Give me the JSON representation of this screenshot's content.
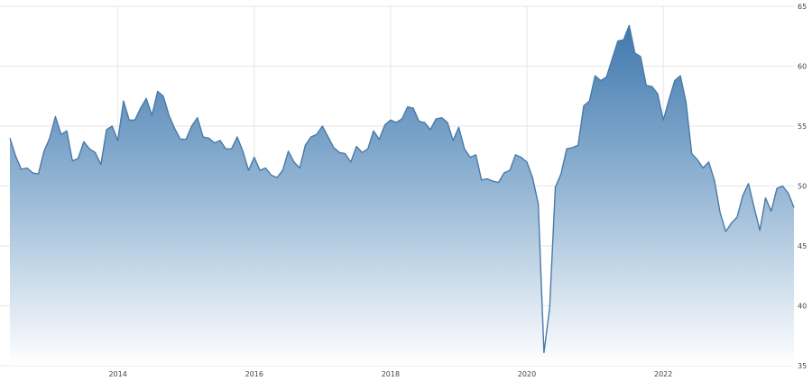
{
  "chart_data": {
    "type": "area",
    "title": "",
    "xlabel": "",
    "ylabel": "",
    "ylim": [
      35,
      65
    ],
    "y_ticks": [
      "35",
      "40",
      "45",
      "50",
      "55",
      "60",
      "65"
    ],
    "x_ticks": [
      "2014",
      "2016",
      "2018",
      "2020",
      "2022"
    ],
    "y_axis_side": "right",
    "grid": true,
    "colors": {
      "line": "#4a7aa8",
      "fill_top": "#3f78ad",
      "fill_bottom": "#ffffff",
      "grid": "#e6e6e6"
    },
    "x": [
      "2012-06",
      "2012-07",
      "2012-08",
      "2012-09",
      "2012-10",
      "2012-11",
      "2012-12",
      "2013-01",
      "2013-02",
      "2013-03",
      "2013-04",
      "2013-05",
      "2013-06",
      "2013-07",
      "2013-08",
      "2013-09",
      "2013-10",
      "2013-11",
      "2013-12",
      "2014-01",
      "2014-02",
      "2014-03",
      "2014-04",
      "2014-05",
      "2014-06",
      "2014-07",
      "2014-08",
      "2014-09",
      "2014-10",
      "2014-11",
      "2014-12",
      "2015-01",
      "2015-02",
      "2015-03",
      "2015-04",
      "2015-05",
      "2015-06",
      "2015-07",
      "2015-08",
      "2015-09",
      "2015-10",
      "2015-11",
      "2015-12",
      "2016-01",
      "2016-02",
      "2016-03",
      "2016-04",
      "2016-05",
      "2016-06",
      "2016-07",
      "2016-08",
      "2016-09",
      "2016-10",
      "2016-11",
      "2016-12",
      "2017-01",
      "2017-02",
      "2017-03",
      "2017-04",
      "2017-05",
      "2017-06",
      "2017-07",
      "2017-08",
      "2017-09",
      "2017-10",
      "2017-11",
      "2017-12",
      "2018-01",
      "2018-02",
      "2018-03",
      "2018-04",
      "2018-05",
      "2018-06",
      "2018-07",
      "2018-08",
      "2018-09",
      "2018-10",
      "2018-11",
      "2018-12",
      "2019-01",
      "2019-02",
      "2019-03",
      "2019-04",
      "2019-05",
      "2019-06",
      "2019-07",
      "2019-08",
      "2019-09",
      "2019-10",
      "2019-11",
      "2019-12",
      "2020-01",
      "2020-02",
      "2020-03",
      "2020-04",
      "2020-05",
      "2020-06",
      "2020-07",
      "2020-08",
      "2020-09",
      "2020-10",
      "2020-11",
      "2020-12",
      "2021-01",
      "2021-02",
      "2021-03",
      "2021-04",
      "2021-05",
      "2021-06",
      "2021-07",
      "2021-08",
      "2021-09",
      "2021-10",
      "2021-11",
      "2021-12",
      "2022-01",
      "2022-02",
      "2022-03",
      "2022-04",
      "2022-05",
      "2022-06",
      "2022-07",
      "2022-08",
      "2022-09",
      "2022-10",
      "2022-11",
      "2022-12",
      "2023-01",
      "2023-02",
      "2023-03",
      "2023-04",
      "2023-05",
      "2023-06",
      "2023-07",
      "2023-08",
      "2023-09",
      "2023-10",
      "2023-11",
      "2023-12"
    ],
    "values": [
      54.0,
      52.5,
      51.4,
      51.5,
      51.1,
      51.0,
      52.9,
      54.0,
      55.8,
      54.3,
      54.6,
      52.1,
      52.3,
      53.7,
      53.1,
      52.8,
      51.8,
      54.7,
      55.0,
      53.8,
      57.1,
      55.5,
      55.5,
      56.5,
      57.3,
      55.9,
      57.9,
      57.5,
      55.9,
      54.8,
      53.9,
      53.9,
      55.0,
      55.7,
      54.1,
      54.0,
      53.6,
      53.8,
      53.1,
      53.1,
      54.1,
      52.9,
      51.3,
      52.4,
      51.3,
      51.5,
      50.9,
      50.7,
      51.3,
      52.9,
      52.0,
      51.5,
      53.4,
      54.1,
      54.3,
      55.0,
      54.1,
      53.2,
      52.8,
      52.7,
      52.0,
      53.3,
      52.8,
      53.1,
      54.6,
      53.9,
      55.1,
      55.5,
      55.3,
      55.6,
      56.6,
      56.5,
      55.4,
      55.3,
      54.7,
      55.6,
      55.7,
      55.3,
      53.8,
      54.9,
      53.1,
      52.4,
      52.6,
      50.5,
      50.6,
      50.4,
      50.3,
      51.1,
      51.3,
      52.6,
      52.4,
      52.0,
      50.7,
      48.5,
      36.1,
      39.8,
      49.9,
      51.0,
      53.1,
      53.2,
      53.4,
      56.7,
      57.1,
      59.2,
      58.8,
      59.1,
      60.6,
      62.1,
      62.2,
      63.4,
      61.1,
      60.8,
      58.4,
      58.3,
      57.7,
      55.5,
      57.2,
      58.8,
      59.2,
      57.0,
      52.7,
      52.2,
      51.5,
      52.0,
      50.5,
      47.8,
      46.2,
      46.9,
      47.4,
      49.2,
      50.2,
      48.2,
      46.3,
      49.0,
      47.9,
      49.8,
      50.0,
      49.4,
      48.2
    ]
  }
}
